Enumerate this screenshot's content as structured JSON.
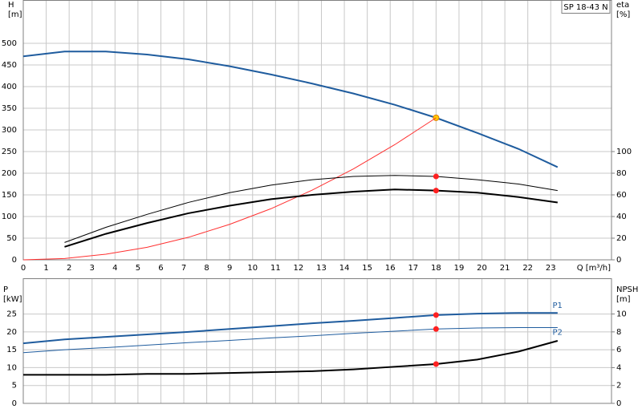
{
  "chart_data": [
    {
      "type": "line",
      "title": "SP 18-43 N",
      "ylabel": [
        "H",
        "[m]"
      ],
      "y2label": [
        "eta",
        "[%]"
      ],
      "xlabel": "Q [m³/h]",
      "x": [
        0,
        1.8,
        3.6,
        5.4,
        7.2,
        9,
        10.8,
        12.6,
        14.4,
        16.2,
        18,
        19.8,
        21.6,
        23.3
      ],
      "xlim": [
        0,
        25.65
      ],
      "xticks": [
        0,
        1,
        2,
        3,
        4,
        5,
        6,
        7,
        8,
        9,
        10,
        11,
        12,
        13,
        14,
        15,
        16,
        17,
        18,
        19,
        20,
        21,
        22,
        23
      ],
      "ylim": [
        0,
        600
      ],
      "yticks": [
        0,
        50,
        100,
        150,
        200,
        250,
        300,
        350,
        400,
        450,
        500
      ],
      "y2lim": [
        0,
        240
      ],
      "y2ticks": [
        0,
        20,
        40,
        60,
        80,
        100
      ],
      "grid": true,
      "duty_x": 18,
      "series": [
        {
          "color": "#1f5c9e",
          "linestyle": "thick",
          "marker_color": "#ffcc00",
          "values": [
            470,
            481,
            481,
            474,
            463,
            447,
            428,
            407,
            384,
            358,
            328,
            293,
            256,
            214
          ]
        },
        {
          "color": "#ff3030",
          "linestyle": "thin",
          "values": [
            0,
            3,
            13,
            29,
            52,
            82,
            118,
            161,
            210,
            266,
            328,
            null,
            null,
            null
          ]
        },
        {
          "color": "#000000",
          "linestyle": "thin",
          "axis": "y2",
          "marker_color": "#ff2020",
          "values": [
            null,
            16,
            30,
            42,
            53,
            62,
            69,
            74,
            77,
            78,
            77,
            74,
            70,
            64
          ]
        },
        {
          "color": "#000000",
          "linestyle": "thick",
          "axis": "y2",
          "marker_color": "#ff2020",
          "values": [
            null,
            12,
            24,
            34,
            43,
            50,
            56,
            60,
            63,
            65,
            64,
            62,
            58,
            53
          ]
        }
      ]
    },
    {
      "type": "line",
      "ylabel": [
        "P",
        "[kW]"
      ],
      "y2label": [
        "NPSH",
        "[m]"
      ],
      "x": [
        0,
        1.8,
        3.6,
        5.4,
        7.2,
        9,
        10.8,
        12.6,
        14.4,
        16.2,
        18,
        19.8,
        21.6,
        23.3
      ],
      "xlim": [
        0,
        25.65
      ],
      "ylim": [
        0,
        35
      ],
      "yticks": [
        0,
        5,
        10,
        15,
        20,
        25
      ],
      "y2lim": [
        0,
        14
      ],
      "y2ticks": [
        0,
        2,
        4,
        6,
        8,
        10
      ],
      "grid": true,
      "duty_x": 18,
      "series": [
        {
          "name": "P1",
          "color": "#1f5c9e",
          "linestyle": "thick",
          "marker_color": "#ff2020",
          "values": [
            16.8,
            17.9,
            18.6,
            19.3,
            20.0,
            20.8,
            21.6,
            22.4,
            23.1,
            23.9,
            24.7,
            25.1,
            25.3,
            25.3
          ]
        },
        {
          "name": "P2",
          "color": "#1f5c9e",
          "linestyle": "thin",
          "marker_color": "#ff2020",
          "values": [
            14.2,
            15.0,
            15.6,
            16.3,
            17.0,
            17.6,
            18.3,
            18.9,
            19.6,
            20.2,
            20.8,
            21.1,
            21.2,
            21.2
          ]
        },
        {
          "color": "#000000",
          "linestyle": "thick",
          "axis": "y2",
          "marker_color": "#ff2020",
          "values": [
            3.2,
            3.2,
            3.2,
            3.3,
            3.3,
            3.4,
            3.5,
            3.6,
            3.8,
            4.1,
            4.4,
            4.9,
            5.8,
            7.0
          ]
        }
      ]
    }
  ]
}
